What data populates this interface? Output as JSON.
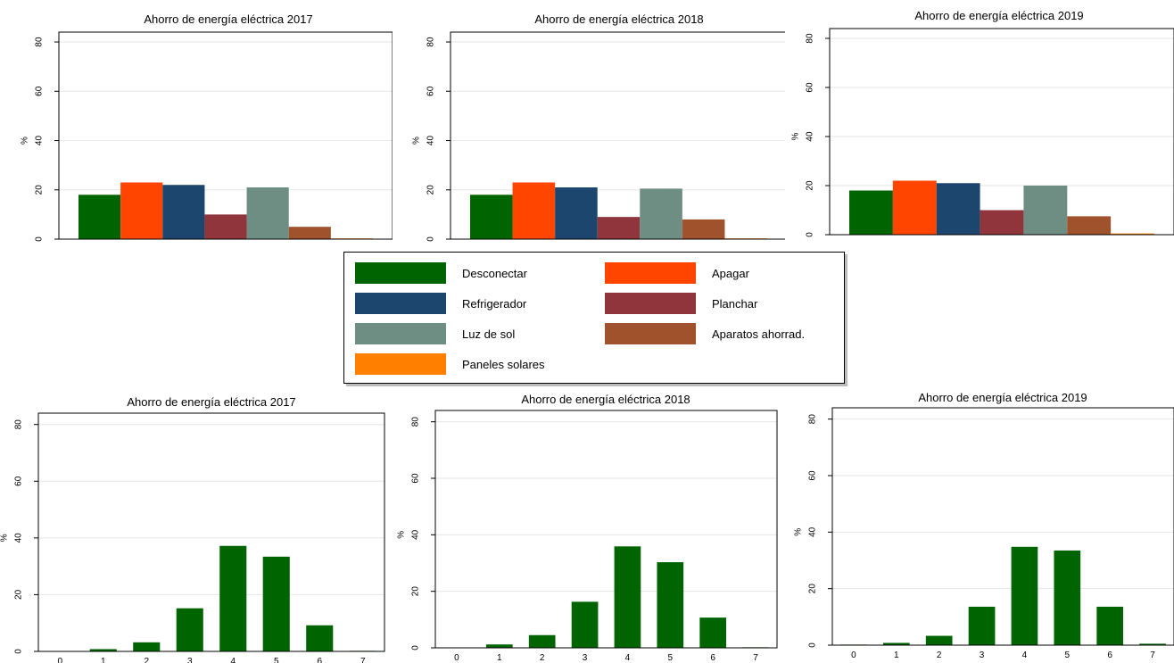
{
  "chart_data": [
    {
      "type": "bar",
      "title": "Ahorro de energía eléctrica 2017",
      "ylabel": "%",
      "ylim": [
        0,
        80
      ],
      "yticks": [
        0,
        20,
        40,
        60,
        80
      ],
      "categories": [
        "Desconectar",
        "Apagar",
        "Refrigerador",
        "Planchar",
        "Luz de sol",
        "Aparatos ahorrad.",
        "Paneles solares"
      ],
      "values": [
        18,
        23,
        22,
        10,
        21,
        5,
        0.3
      ]
    },
    {
      "type": "bar",
      "title": "Ahorro de energía eléctrica 2018",
      "ylabel": "%",
      "ylim": [
        0,
        80
      ],
      "yticks": [
        0,
        20,
        40,
        60,
        80
      ],
      "categories": [
        "Desconectar",
        "Apagar",
        "Refrigerador",
        "Planchar",
        "Luz de sol",
        "Aparatos ahorrad.",
        "Paneles solares"
      ],
      "values": [
        18,
        23,
        21,
        9,
        20.5,
        8,
        0.3
      ]
    },
    {
      "type": "bar",
      "title": "Ahorro de energía eléctrica 2019",
      "ylabel": "%",
      "ylim": [
        0,
        80
      ],
      "yticks": [
        0,
        20,
        40,
        60,
        80
      ],
      "categories": [
        "Desconectar",
        "Apagar",
        "Refrigerador",
        "Planchar",
        "Luz de sol",
        "Aparatos ahorrad.",
        "Paneles solares"
      ],
      "values": [
        18,
        22,
        21,
        10,
        20,
        7.5,
        0.5
      ]
    },
    {
      "type": "bar",
      "title": "Ahorro de energía eléctrica 2017",
      "ylabel": "%",
      "ylim": [
        0,
        80
      ],
      "yticks": [
        0,
        20,
        40,
        60,
        80
      ],
      "categories": [
        "0",
        "1",
        "2",
        "3",
        "4",
        "5",
        "6",
        "7"
      ],
      "values": [
        0,
        0.8,
        3.2,
        15.2,
        37.2,
        33.4,
        9.2,
        0.2
      ]
    },
    {
      "type": "bar",
      "title": "Ahorro de energía eléctrica 2018",
      "ylabel": "%",
      "ylim": [
        0,
        80
      ],
      "yticks": [
        0,
        20,
        40,
        60,
        80
      ],
      "categories": [
        "0",
        "1",
        "2",
        "3",
        "4",
        "5",
        "6",
        "7"
      ],
      "values": [
        0,
        1.2,
        4.5,
        16.3,
        35.9,
        30.3,
        10.7,
        0.2
      ]
    },
    {
      "type": "bar",
      "title": "Ahorro de energía eléctrica 2019",
      "ylabel": "%",
      "ylim": [
        0,
        80
      ],
      "yticks": [
        0,
        20,
        40,
        60,
        80
      ],
      "categories": [
        "0",
        "1",
        "2",
        "3",
        "4",
        "5",
        "6",
        "7"
      ],
      "values": [
        0.2,
        0.8,
        3.3,
        13.6,
        34.8,
        33.5,
        13.6,
        0.5
      ]
    }
  ],
  "legend": {
    "items": [
      {
        "label": "Desconectar",
        "color": "#006400"
      },
      {
        "label": "Apagar",
        "color": "#ff4500"
      },
      {
        "label": "Refrigerador",
        "color": "#1c466e"
      },
      {
        "label": "Planchar",
        "color": "#90353b"
      },
      {
        "label": "Luz de sol",
        "color": "#6e8e84"
      },
      {
        "label": "Aparatos ahorrad.",
        "color": "#a0522d"
      },
      {
        "label": "Paneles solares",
        "color": "#ff7f00"
      }
    ]
  },
  "colors": {
    "count_bar": "#006400",
    "gridline": "#e6e6e6"
  }
}
